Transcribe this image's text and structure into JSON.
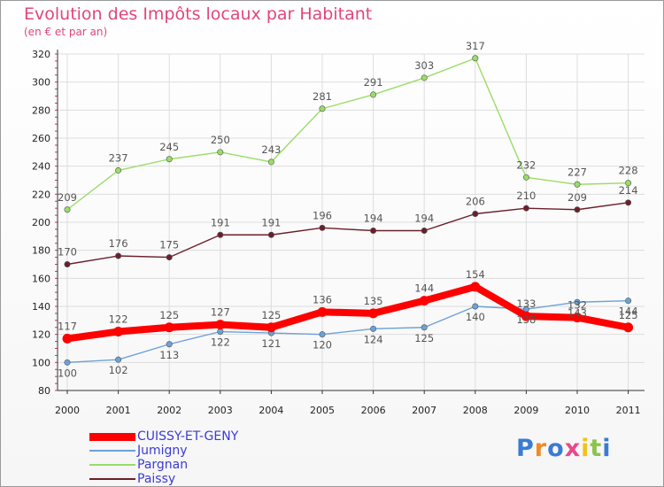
{
  "title": "Evolution des Impôts locaux par Habitant",
  "subtitle": "(en € et par an)",
  "logo_text": "Proxiti",
  "colors": {
    "title": "#e0467b",
    "legend_text": "#3b3bd6",
    "grid": "#dddddd",
    "axis": "#333333"
  },
  "chart_data": {
    "type": "line",
    "title": "Evolution des Impôts locaux par Habitant",
    "subtitle": "(en € et par an)",
    "x": [
      "2000",
      "2001",
      "2002",
      "2003",
      "2004",
      "2005",
      "2006",
      "2007",
      "2008",
      "2009",
      "2010",
      "2011"
    ],
    "ylim": [
      80,
      320
    ],
    "yticks": [
      80,
      100,
      120,
      140,
      160,
      180,
      200,
      220,
      240,
      260,
      280,
      300,
      320
    ],
    "grid": true,
    "legend_position": "bottom-left",
    "series": [
      {
        "name": "CUISSY-ET-GENY",
        "color": "#ff0000",
        "values": [
          117,
          122,
          125,
          127,
          125,
          136,
          135,
          144,
          154,
          133,
          132,
          125
        ]
      },
      {
        "name": "Jumigny",
        "color": "#6ca2d8",
        "values": [
          100,
          102,
          113,
          122,
          121,
          120,
          124,
          125,
          140,
          138,
          143,
          144
        ]
      },
      {
        "name": "Pargnan",
        "color": "#99dd66",
        "values": [
          209,
          237,
          245,
          250,
          243,
          281,
          291,
          303,
          317,
          232,
          227,
          228
        ]
      },
      {
        "name": "Paissy",
        "color": "#6b1f2a",
        "values": [
          170,
          176,
          175,
          191,
          191,
          196,
          194,
          194,
          206,
          210,
          209,
          214
        ]
      }
    ]
  }
}
